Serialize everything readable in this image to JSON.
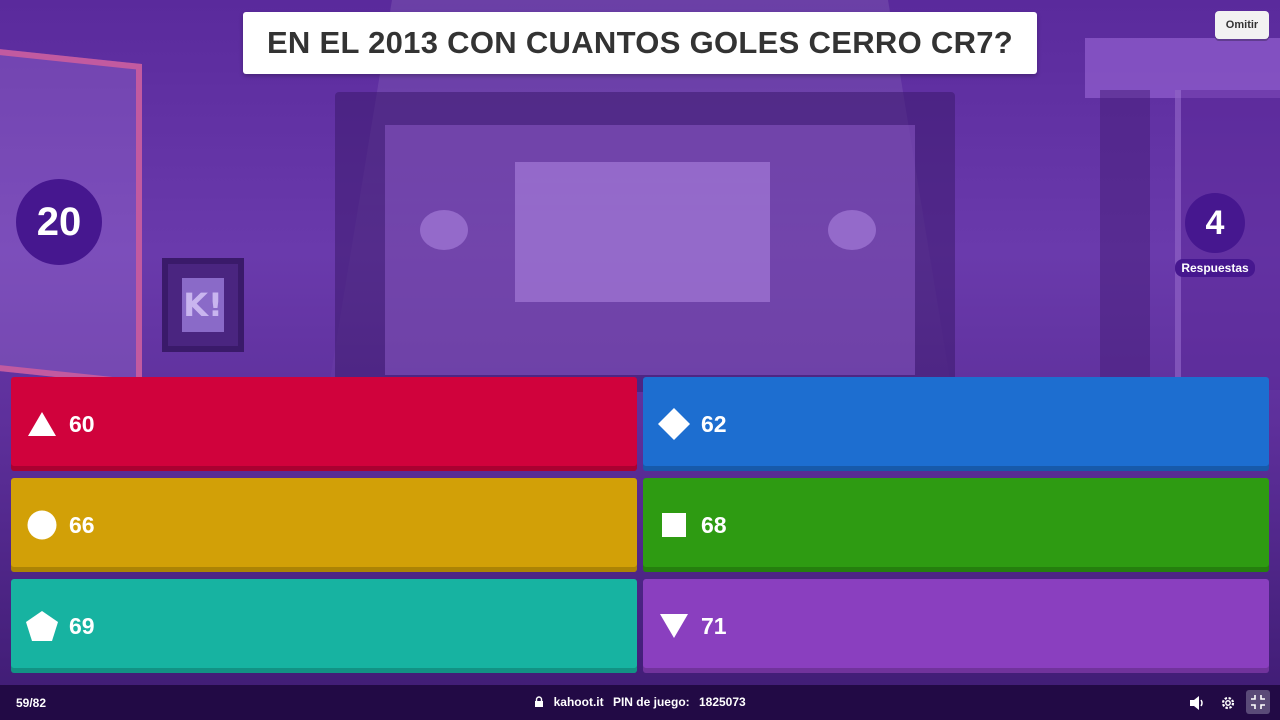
{
  "question": "EN EL 2013 CON CUANTOS GOLES CERRO CR7?",
  "skip_label": "Omitir",
  "timer": "20",
  "answers_count": "4",
  "answers_label": "Respuestas",
  "answers": [
    {
      "shape": "triangle-icon",
      "text": "60",
      "color": "#d0023c"
    },
    {
      "shape": "diamond-icon",
      "text": "62",
      "color": "#1d6ed0"
    },
    {
      "shape": "circle-icon",
      "text": "66",
      "color": "#d2a007"
    },
    {
      "shape": "square-icon",
      "text": "68",
      "color": "#2e9b12"
    },
    {
      "shape": "pentagon-icon",
      "text": "69",
      "color": "#17b3a1"
    },
    {
      "shape": "inverted-triangle-icon",
      "text": "71",
      "color": "#8a3fbf"
    }
  ],
  "bottom_bar": {
    "progress": "59/82",
    "site": "kahoot.it",
    "pin_label": "PIN de juego:",
    "pin_value": "1825073"
  },
  "background_logo_text": "K!"
}
